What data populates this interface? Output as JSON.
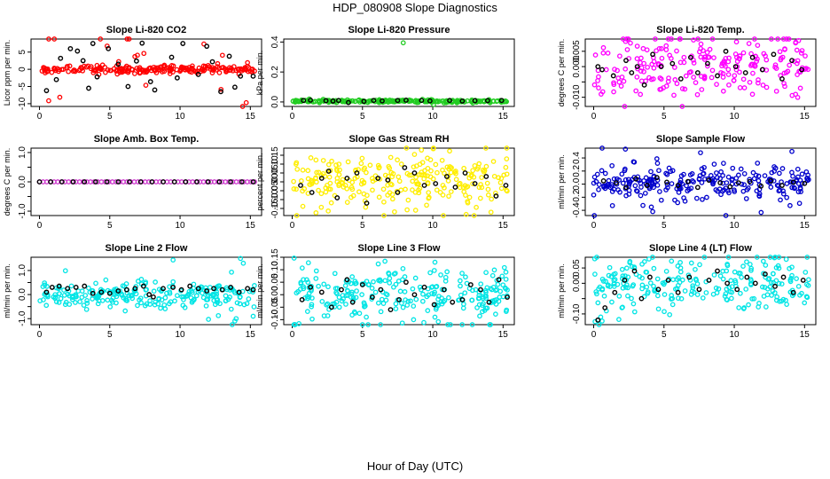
{
  "title": "HDP_080908  Slope Diagnostics",
  "xlabel": "Hour of Day (UTC)",
  "chart_data": [
    {
      "type": "scatter",
      "title": "Slope Li-820 CO2",
      "ylabel": "Licor ppm per min.",
      "xlim": [
        -0.6,
        15.8
      ],
      "ylim": [
        -10.8,
        8.8
      ],
      "xticks": [
        0,
        5,
        10,
        15
      ],
      "yticks": [
        -10,
        -5,
        0,
        5
      ],
      "ytick_labels": [
        "-10",
        "-5",
        "0",
        "5"
      ],
      "color": "#ff0000",
      "center": 0,
      "spread": 0.6,
      "outlier_spread": 8.5,
      "n": 240,
      "seed": 11,
      "black_points": [
        [
          0.5,
          -6.2
        ],
        [
          1.2,
          -3
        ],
        [
          1.5,
          3.2
        ],
        [
          2.2,
          6
        ],
        [
          2.7,
          5.3
        ],
        [
          3.1,
          2.5
        ],
        [
          3.5,
          -5.5
        ],
        [
          3.8,
          7.5
        ],
        [
          4.1,
          -2.2
        ],
        [
          4.9,
          6
        ],
        [
          5.6,
          1.5
        ],
        [
          6.3,
          -5
        ],
        [
          6.9,
          2.4
        ],
        [
          7.3,
          7.6
        ],
        [
          7.9,
          -3.6
        ],
        [
          8.2,
          -6
        ],
        [
          9.4,
          3.5
        ],
        [
          9.8,
          -2.5
        ],
        [
          10.2,
          7.5
        ],
        [
          11.3,
          -1.5
        ],
        [
          11.9,
          6.7
        ],
        [
          12.3,
          2.2
        ],
        [
          12.9,
          -6.5
        ],
        [
          13.5,
          3.8
        ],
        [
          13.9,
          -5.2
        ],
        [
          14.3,
          -2
        ],
        [
          15.2,
          -2
        ]
      ]
    },
    {
      "type": "scatter",
      "title": "Slope Li-820 Pressure",
      "ylabel": "kPa per min.",
      "xlim": [
        -0.6,
        15.8
      ],
      "ylim": [
        -0.03,
        0.42
      ],
      "xticks": [
        0,
        5,
        10,
        15
      ],
      "yticks": [
        0,
        0.2,
        0.4
      ],
      "ytick_labels": [
        "0.0",
        "0.2",
        "0.4"
      ],
      "color": "#22cc22",
      "center": 0.005,
      "spread": 0.004,
      "outlier_spread": 0.01,
      "n": 240,
      "seed": 23,
      "outliers": [
        [
          7.9,
          0.395
        ]
      ],
      "black_points": [
        [
          0.8,
          0.01
        ],
        [
          1.3,
          0.012
        ],
        [
          2.4,
          0.008
        ],
        [
          2.9,
          0.006
        ],
        [
          3.3,
          0.01
        ],
        [
          4.0,
          -0.004
        ],
        [
          5.1,
          0.004
        ],
        [
          5.8,
          0.01
        ],
        [
          6.4,
          0.007
        ],
        [
          7.5,
          0.01
        ],
        [
          8.1,
          0.012
        ],
        [
          9.2,
          0.01
        ],
        [
          9.8,
          0.007
        ],
        [
          11.2,
          0.01
        ],
        [
          12.1,
          0.006
        ],
        [
          13.0,
          0.008
        ],
        [
          13.9,
          0.009
        ],
        [
          14.9,
          0.01
        ]
      ]
    },
    {
      "type": "scatter",
      "title": "Slope Li-820 Temp.",
      "ylabel": "degrees C per min.",
      "xlim": [
        -0.6,
        15.8
      ],
      "ylim": [
        -0.013,
        0.009
      ],
      "xticks": [
        0,
        5,
        10,
        15
      ],
      "yticks": [
        -0.01,
        -0.005,
        0,
        0.005
      ],
      "ytick_labels": [
        "-0.010",
        "",
        "0.000",
        "0.005"
      ],
      "color": "#ff00ff",
      "center": 0,
      "spread": 0.0055,
      "outlier_spread": 0.009,
      "n": 230,
      "seed": 31,
      "black_points": [
        [
          0.3,
          0
        ],
        [
          0.6,
          -0.001
        ],
        [
          1.4,
          -0.003
        ],
        [
          2.3,
          0.002
        ],
        [
          2.7,
          -0.002
        ],
        [
          3.1,
          0
        ],
        [
          3.6,
          -0.006
        ],
        [
          4.2,
          0.004
        ],
        [
          4.8,
          0
        ],
        [
          5.6,
          0.001
        ],
        [
          6.2,
          -0.004
        ],
        [
          6.9,
          0.003
        ],
        [
          7.4,
          -0.002
        ],
        [
          8.1,
          0.001
        ],
        [
          8.8,
          -0.003
        ],
        [
          9.4,
          0.005
        ],
        [
          10.1,
          0
        ],
        [
          10.8,
          -0.002
        ],
        [
          11.3,
          0.003
        ],
        [
          12.0,
          -0.001
        ],
        [
          12.8,
          0.004
        ],
        [
          13.4,
          -0.004
        ],
        [
          14.1,
          0.002
        ],
        [
          14.8,
          -0.001
        ]
      ]
    },
    {
      "type": "scatter",
      "title": "Slope Amb. Box Temp.",
      "ylabel": "degrees C per min.",
      "xlim": [
        -0.6,
        15.8
      ],
      "ylim": [
        -1.15,
        1.15
      ],
      "xticks": [
        0,
        5,
        10,
        15
      ],
      "yticks": [
        -1,
        -0.5,
        0,
        0.5,
        1
      ],
      "ytick_labels": [
        "-1.0",
        "",
        "0.0",
        "",
        "1.0"
      ],
      "color": "#cc33cc",
      "center": 0,
      "spread": 0,
      "outlier_spread": 0,
      "n": 60,
      "seed": 41,
      "uniform": true,
      "black_points": [
        [
          0,
          0
        ],
        [
          0.8,
          0
        ],
        [
          1.6,
          0
        ],
        [
          2.4,
          0
        ],
        [
          3.2,
          0
        ],
        [
          4.0,
          0
        ],
        [
          4.8,
          0
        ],
        [
          5.6,
          0
        ],
        [
          6.4,
          0
        ],
        [
          7.2,
          0
        ],
        [
          8.0,
          0
        ],
        [
          8.8,
          0
        ],
        [
          9.6,
          0
        ],
        [
          10.4,
          0
        ],
        [
          11.2,
          0
        ],
        [
          12.0,
          0
        ],
        [
          12.8,
          0
        ],
        [
          13.6,
          0
        ],
        [
          14.4,
          0
        ],
        [
          15.2,
          0
        ]
      ]
    },
    {
      "type": "scatter",
      "title": "Slope Gas Stream RH",
      "ylabel": "percent per min.",
      "xlim": [
        -0.6,
        15.8
      ],
      "ylim": [
        -0.19,
        0.19
      ],
      "xticks": [
        0,
        5,
        10,
        15
      ],
      "yticks": [
        -0.15,
        -0.1,
        -0.05,
        0,
        0.05,
        0.1,
        0.15
      ],
      "ytick_labels": [
        "-0.15",
        "-0.10",
        "-0.05",
        "0.00",
        "0.05",
        "0.10",
        "0.15"
      ],
      "color": "#ffee00",
      "center": 0,
      "spread": 0.08,
      "outlier_spread": 0.17,
      "n": 260,
      "seed": 53,
      "black_points": [
        [
          0.6,
          -0.02
        ],
        [
          1.4,
          -0.06
        ],
        [
          2.1,
          0.02
        ],
        [
          2.6,
          0.06
        ],
        [
          3.2,
          -0.09
        ],
        [
          3.9,
          0.02
        ],
        [
          4.6,
          0.05
        ],
        [
          5.3,
          -0.12
        ],
        [
          6.1,
          0.02
        ],
        [
          6.8,
          0.01
        ],
        [
          7.5,
          -0.06
        ],
        [
          8.0,
          0.08
        ],
        [
          8.7,
          0.05
        ],
        [
          9.4,
          -0.02
        ],
        [
          10.2,
          -0.01
        ],
        [
          11.0,
          0.03
        ],
        [
          11.6,
          -0.03
        ],
        [
          12.3,
          0.05
        ],
        [
          13.0,
          -0.01
        ],
        [
          13.8,
          0.03
        ],
        [
          14.5,
          -0.08
        ],
        [
          15.2,
          -0.02
        ]
      ]
    },
    {
      "type": "scatter",
      "title": "Slope Sample Flow",
      "ylabel": "ml/min per min.",
      "xlim": [
        -0.6,
        15.8
      ],
      "ylim": [
        -0.48,
        0.55
      ],
      "xticks": [
        0,
        5,
        10,
        15
      ],
      "yticks": [
        -0.4,
        -0.2,
        0,
        0.2,
        0.4
      ],
      "ytick_labels": [
        "-0.4",
        "-0.2",
        "0.0",
        "0.2",
        "0.4"
      ],
      "color": "#0000cc",
      "center": 0,
      "spread": 0.12,
      "outlier_spread": 0.35,
      "n": 250,
      "seed": 67,
      "outliers": [
        [
          4.1,
          -0.35
        ],
        [
          4.2,
          -0.42
        ],
        [
          14.1,
          0.5
        ]
      ],
      "black_points": [
        [
          0.7,
          0.05
        ],
        [
          1.6,
          0.02
        ],
        [
          2.3,
          -0.05
        ],
        [
          3.0,
          0.08
        ],
        [
          3.8,
          -0.02
        ],
        [
          4.5,
          0.1
        ],
        [
          5.2,
          0.03
        ],
        [
          6.0,
          -0.02
        ],
        [
          6.7,
          0.04
        ],
        [
          7.4,
          -0.05
        ],
        [
          8.2,
          0.06
        ],
        [
          9.0,
          0.02
        ],
        [
          9.7,
          -0.04
        ],
        [
          10.3,
          0.02
        ],
        [
          11.1,
          0.04
        ],
        [
          11.9,
          -0.03
        ],
        [
          12.6,
          0.05
        ],
        [
          13.4,
          -0.02
        ],
        [
          14.2,
          0.03
        ],
        [
          15.0,
          0.01
        ]
      ]
    },
    {
      "type": "scatter",
      "title": "Slope Line 2 Flow",
      "ylabel": "ml/min per min.",
      "xlim": [
        -0.6,
        15.8
      ],
      "ylim": [
        -1.25,
        1.55
      ],
      "xticks": [
        0,
        5,
        10,
        15
      ],
      "yticks": [
        -1,
        -0.5,
        0,
        0.5,
        1
      ],
      "ytick_labels": [
        "-1.0",
        "",
        "0.0",
        "",
        "1.0"
      ],
      "color": "#00e5e5",
      "center": 0,
      "spread": 0.25,
      "outlier_spread": 0.8,
      "n": 250,
      "seed": 79,
      "outliers": [
        [
          14.3,
          1.5
        ],
        [
          14.5,
          1.3
        ],
        [
          13.9,
          -1.1
        ],
        [
          15.2,
          -0.9
        ]
      ],
      "black_points": [
        [
          0.5,
          0.1
        ],
        [
          0.9,
          0.3
        ],
        [
          1.4,
          0.35
        ],
        [
          2.0,
          0.25
        ],
        [
          2.6,
          0.3
        ],
        [
          3.2,
          0.35
        ],
        [
          3.8,
          0.05
        ],
        [
          4.4,
          0.1
        ],
        [
          5.0,
          0.05
        ],
        [
          5.6,
          0.15
        ],
        [
          6.2,
          0.2
        ],
        [
          6.8,
          0.25
        ],
        [
          7.4,
          0.35
        ],
        [
          7.8,
          0.0
        ],
        [
          8.1,
          -0.1
        ],
        [
          8.8,
          0.25
        ],
        [
          9.5,
          0.3
        ],
        [
          10.1,
          0.2
        ],
        [
          10.7,
          0.35
        ],
        [
          11.3,
          0.25
        ],
        [
          11.9,
          0.15
        ],
        [
          12.4,
          0.25
        ],
        [
          13.0,
          0.2
        ],
        [
          13.6,
          0.3
        ],
        [
          14.2,
          0.1
        ],
        [
          14.8,
          0.25
        ],
        [
          15.2,
          0.2
        ]
      ]
    },
    {
      "type": "scatter",
      "title": "Slope Line 3 Flow",
      "ylabel": "ml/min per min.",
      "xlim": [
        -0.6,
        15.8
      ],
      "ylim": [
        -0.12,
        0.15
      ],
      "xticks": [
        0,
        5,
        10,
        15
      ],
      "yticks": [
        -0.1,
        -0.05,
        0,
        0.05,
        0.1,
        0.15
      ],
      "ytick_labels": [
        "-0.10",
        "-0.05",
        "0.00",
        "0.05",
        "0.10",
        "0.15"
      ],
      "color": "#00e5e5",
      "center": 0,
      "spread": 0.06,
      "outlier_spread": 0.11,
      "n": 260,
      "seed": 97,
      "black_points": [
        [
          0.7,
          -0.02
        ],
        [
          1.3,
          0.03
        ],
        [
          2.1,
          0.01
        ],
        [
          2.8,
          -0.05
        ],
        [
          3.5,
          0.02
        ],
        [
          3.9,
          0.06
        ],
        [
          4.3,
          -0.03
        ],
        [
          5.0,
          0.04
        ],
        [
          5.7,
          -0.01
        ],
        [
          6.3,
          0.02
        ],
        [
          7.0,
          -0.06
        ],
        [
          7.6,
          -0.02
        ],
        [
          8.1,
          0.05
        ],
        [
          8.7,
          0.0
        ],
        [
          9.4,
          0.03
        ],
        [
          10.1,
          -0.04
        ],
        [
          10.8,
          0.02
        ],
        [
          11.4,
          -0.03
        ],
        [
          12.1,
          -0.02
        ],
        [
          12.7,
          0.04
        ],
        [
          13.4,
          0.02
        ],
        [
          14.0,
          -0.03
        ],
        [
          14.7,
          0.06
        ],
        [
          15.3,
          -0.01
        ]
      ]
    },
    {
      "type": "scatter",
      "title": "Slope Line 4 (LT) Flow",
      "ylabel": "ml/min per min.",
      "xlim": [
        -0.6,
        15.8
      ],
      "ylim": [
        -0.135,
        0.085
      ],
      "xticks": [
        0,
        5,
        10,
        15
      ],
      "yticks": [
        -0.1,
        -0.05,
        0,
        0.05
      ],
      "ytick_labels": [
        "-0.10",
        "",
        "0.00",
        "0.05"
      ],
      "color": "#00e5e5",
      "center": 0,
      "spread": 0.045,
      "outlier_spread": 0.08,
      "n": 240,
      "seed": 113,
      "outliers": [
        [
          0.1,
          -0.125
        ],
        [
          0.5,
          -0.11
        ],
        [
          0.9,
          -0.09
        ]
      ],
      "black_points": [
        [
          0.3,
          -0.12
        ],
        [
          0.8,
          -0.08
        ],
        [
          1.5,
          -0.03
        ],
        [
          2.2,
          0.01
        ],
        [
          2.9,
          0.04
        ],
        [
          3.4,
          -0.05
        ],
        [
          4.0,
          0.02
        ],
        [
          4.6,
          -0.02
        ],
        [
          5.3,
          0.01
        ],
        [
          6.0,
          -0.03
        ],
        [
          6.8,
          0.02
        ],
        [
          7.5,
          -0.02
        ],
        [
          8.2,
          0.01
        ],
        [
          8.8,
          0.04
        ],
        [
          9.5,
          0.0
        ],
        [
          10.2,
          -0.02
        ],
        [
          10.9,
          0.02
        ],
        [
          11.5,
          0.0
        ],
        [
          12.2,
          0.03
        ],
        [
          12.9,
          -0.01
        ],
        [
          13.5,
          0.02
        ],
        [
          14.2,
          -0.03
        ],
        [
          14.9,
          0.01
        ]
      ]
    }
  ]
}
